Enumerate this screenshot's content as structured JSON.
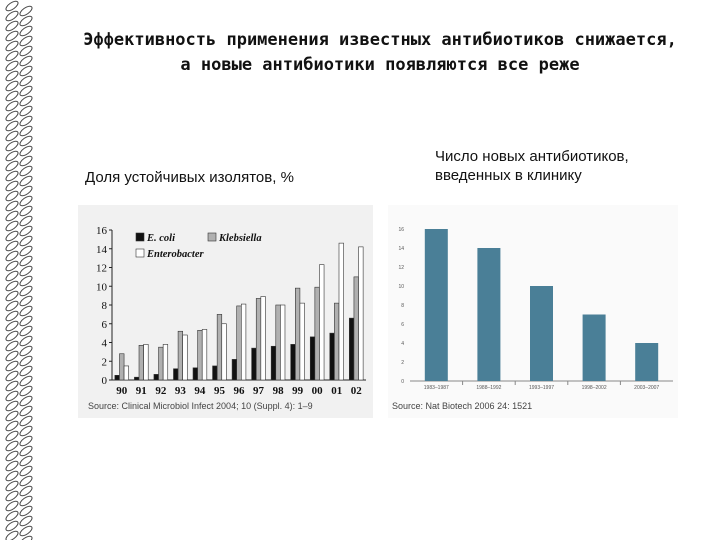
{
  "slide": {
    "title_line1": "Эффективность применения известных антибиотиков снижается,",
    "title_line2": "а новые антибиотики появляются все реже",
    "caption_left": "Доля устойчивых изолятов, %",
    "caption_right_line1": "Число новых антибиотиков,",
    "caption_right_line2": "введенных в клинику"
  },
  "chart_data": [
    {
      "type": "bar",
      "categories": [
        "90",
        "91",
        "92",
        "93",
        "94",
        "95",
        "96",
        "97",
        "98",
        "99",
        "00",
        "01",
        "02"
      ],
      "series": [
        {
          "name": "E. coli",
          "color": "#111111",
          "values": [
            0.5,
            0.3,
            0.6,
            1.2,
            1.3,
            1.5,
            2.2,
            3.4,
            3.6,
            3.8,
            4.6,
            5.0,
            6.6
          ]
        },
        {
          "name": "Klebsiella",
          "color": "#b0b0b0",
          "values": [
            2.8,
            3.7,
            3.5,
            5.2,
            5.3,
            7.0,
            7.9,
            8.7,
            8.0,
            9.8,
            9.9,
            8.2,
            11.0
          ]
        },
        {
          "name": "Enterobacter",
          "color": "#ffffff",
          "values": [
            1.5,
            3.8,
            3.8,
            4.8,
            5.4,
            6.0,
            8.1,
            8.9,
            8.0,
            8.2,
            12.3,
            14.6,
            14.2
          ]
        }
      ],
      "yticks": [
        "0",
        "2",
        "4",
        "6",
        "8",
        "10",
        "12",
        "14",
        "16"
      ],
      "ylim": [
        0,
        16
      ],
      "source": "Source: Clinical Microbiol Infect 2004; 10 (Suppl. 4): 1–9"
    },
    {
      "type": "bar",
      "color": "#4a7f97",
      "categories": [
        "1983–1987",
        "1988–1992",
        "1993–1997",
        "1998–2002",
        "2003–2007"
      ],
      "values": [
        16,
        14,
        10,
        7,
        4
      ],
      "yticks": [
        "0",
        "2",
        "4",
        "6",
        "8",
        "10",
        "12",
        "14",
        "16"
      ],
      "ylim": [
        0,
        16
      ],
      "source": "Source: Nat Biotech 2006 24: 1521"
    }
  ]
}
